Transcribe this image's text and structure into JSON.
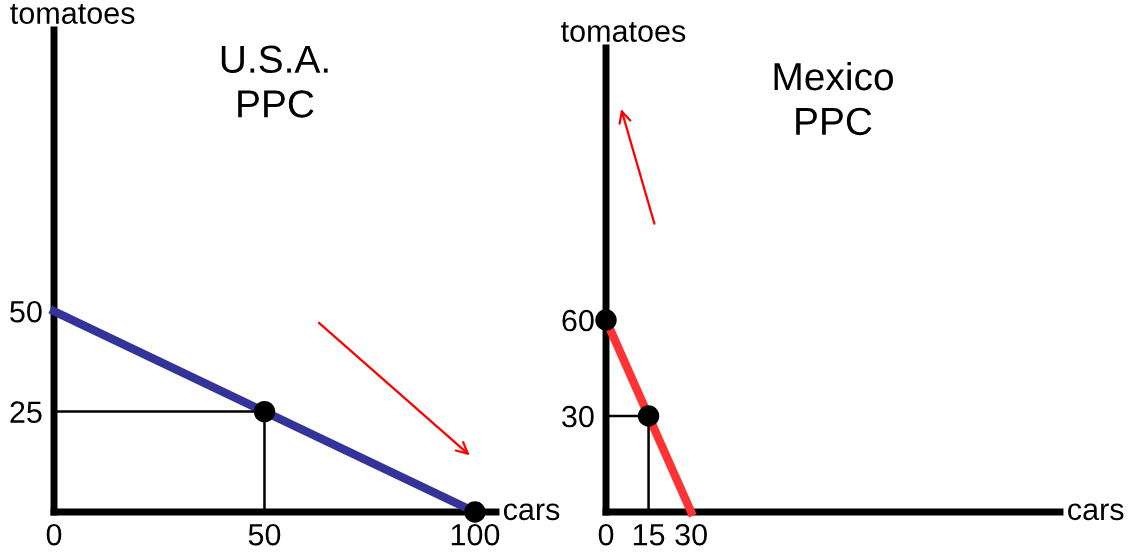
{
  "chart_data": [
    {
      "type": "line",
      "title": "U.S.A.\nPPC",
      "xlabel": "cars",
      "ylabel": "tomatoes",
      "xlim": [
        0,
        105
      ],
      "ylim": [
        0,
        120
      ],
      "xticks": [
        0,
        50,
        100
      ],
      "yticks": [
        25,
        50
      ],
      "grid": false,
      "legend": false,
      "series": [
        {
          "color": "#333399",
          "x": [
            0,
            100
          ],
          "values": [
            50,
            0
          ],
          "marker": "none"
        },
        {
          "color": "#000000",
          "x": [
            0,
            50,
            50
          ],
          "values": [
            25,
            25,
            0
          ],
          "marker": "none"
        },
        {
          "type": "scatter",
          "color": "#000000",
          "x": [
            50,
            100
          ],
          "values": [
            25,
            0
          ],
          "marker": "circle"
        }
      ]
    },
    {
      "type": "line",
      "title": "Mexico\nPPC",
      "xlabel": "cars",
      "ylabel": "tomatoes",
      "xlim": [
        0,
        160
      ],
      "ylim": [
        0,
        145
      ],
      "xticks": [
        0,
        15,
        30
      ],
      "yticks": [
        30,
        60
      ],
      "grid": false,
      "legend": false,
      "series": [
        {
          "color": "#ff3333",
          "x": [
            0,
            30
          ],
          "values": [
            60,
            0
          ],
          "marker": "none"
        },
        {
          "color": "#000000",
          "x": [
            0,
            15,
            15
          ],
          "values": [
            30,
            30,
            0
          ],
          "marker": "none"
        },
        {
          "type": "scatter",
          "color": "#000000",
          "x": [
            0,
            15
          ],
          "values": [
            60,
            30
          ],
          "marker": "circle"
        }
      ]
    }
  ]
}
